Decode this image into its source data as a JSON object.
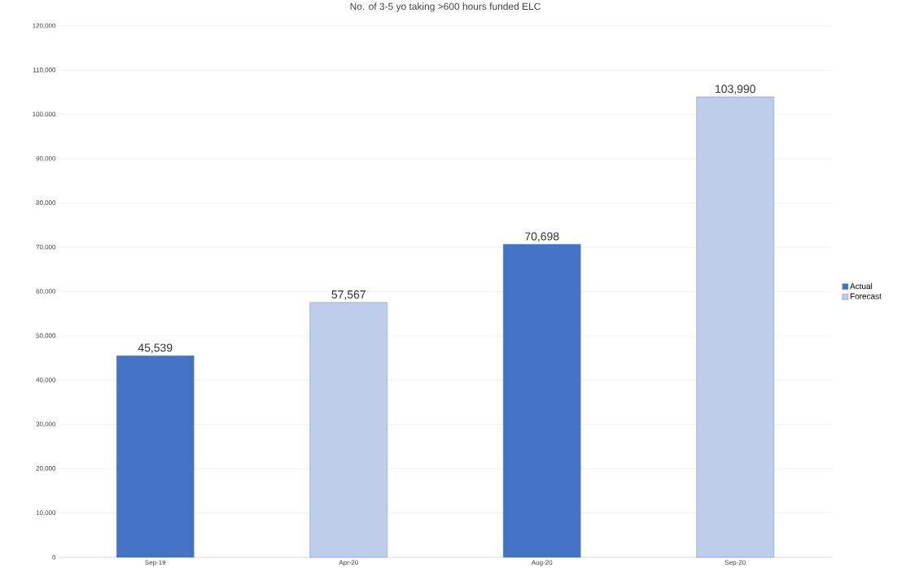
{
  "chart_data": {
    "type": "bar",
    "title": "No. of 3-5 yo taking >600 hours funded ELC",
    "categories": [
      "Sep-19",
      "Apr-20",
      "Aug-20",
      "Sep-20"
    ],
    "series": [
      {
        "name": "Actual",
        "color": "#4472c4",
        "values": [
          45539,
          null,
          70698,
          null
        ],
        "value_labels": [
          "45,539",
          null,
          "70,698",
          null
        ]
      },
      {
        "name": "Forecast",
        "color": "#4472c4",
        "values": [
          null,
          57567,
          null,
          103990
        ],
        "value_labels": [
          null,
          "57,567",
          null,
          "103,990"
        ]
      }
    ],
    "ylim": [
      0,
      120000
    ],
    "yticks": [
      {
        "value": 0,
        "label": "0"
      },
      {
        "value": 10000,
        "label": "10,000"
      },
      {
        "value": 20000,
        "label": "20,000"
      },
      {
        "value": 30000,
        "label": "30,000"
      },
      {
        "value": 40000,
        "label": "40,000"
      },
      {
        "value": 50000,
        "label": "50,000"
      },
      {
        "value": 60000,
        "label": "60,000"
      },
      {
        "value": 70000,
        "label": "70,000"
      },
      {
        "value": 80000,
        "label": "80,000"
      },
      {
        "value": 90000,
        "label": "90,000"
      },
      {
        "value": 100000,
        "label": "100,000"
      },
      {
        "value": 110000,
        "label": "110,000"
      },
      {
        "value": 120000,
        "label": "120,000"
      }
    ],
    "grid": "y",
    "legend": "right"
  }
}
